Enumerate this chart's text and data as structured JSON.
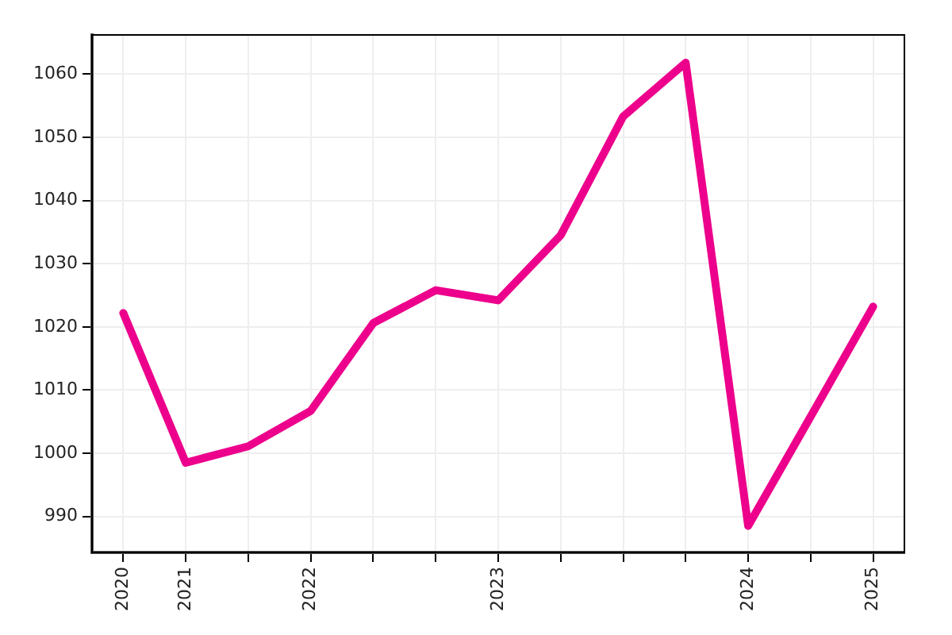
{
  "chart_data": {
    "type": "line",
    "categories": [
      "2020",
      "2021",
      null,
      "2022",
      null,
      null,
      "2023",
      null,
      null,
      null,
      "2024",
      null,
      "2025"
    ],
    "series": [
      {
        "color": "#ec008c",
        "values": [
          1022.2,
          998.5,
          1001.1,
          1006.7,
          1020.6,
          1025.8,
          1024.2,
          1034.5,
          1053.3,
          1061.8,
          988.5,
          1005.8,
          1023.2
        ]
      }
    ],
    "ylim": [
      984.3,
      1066.2
    ],
    "yticks": [
      990,
      1000,
      1010,
      1020,
      1030,
      1040,
      1050,
      1060
    ],
    "grid": true,
    "legend": false
  }
}
